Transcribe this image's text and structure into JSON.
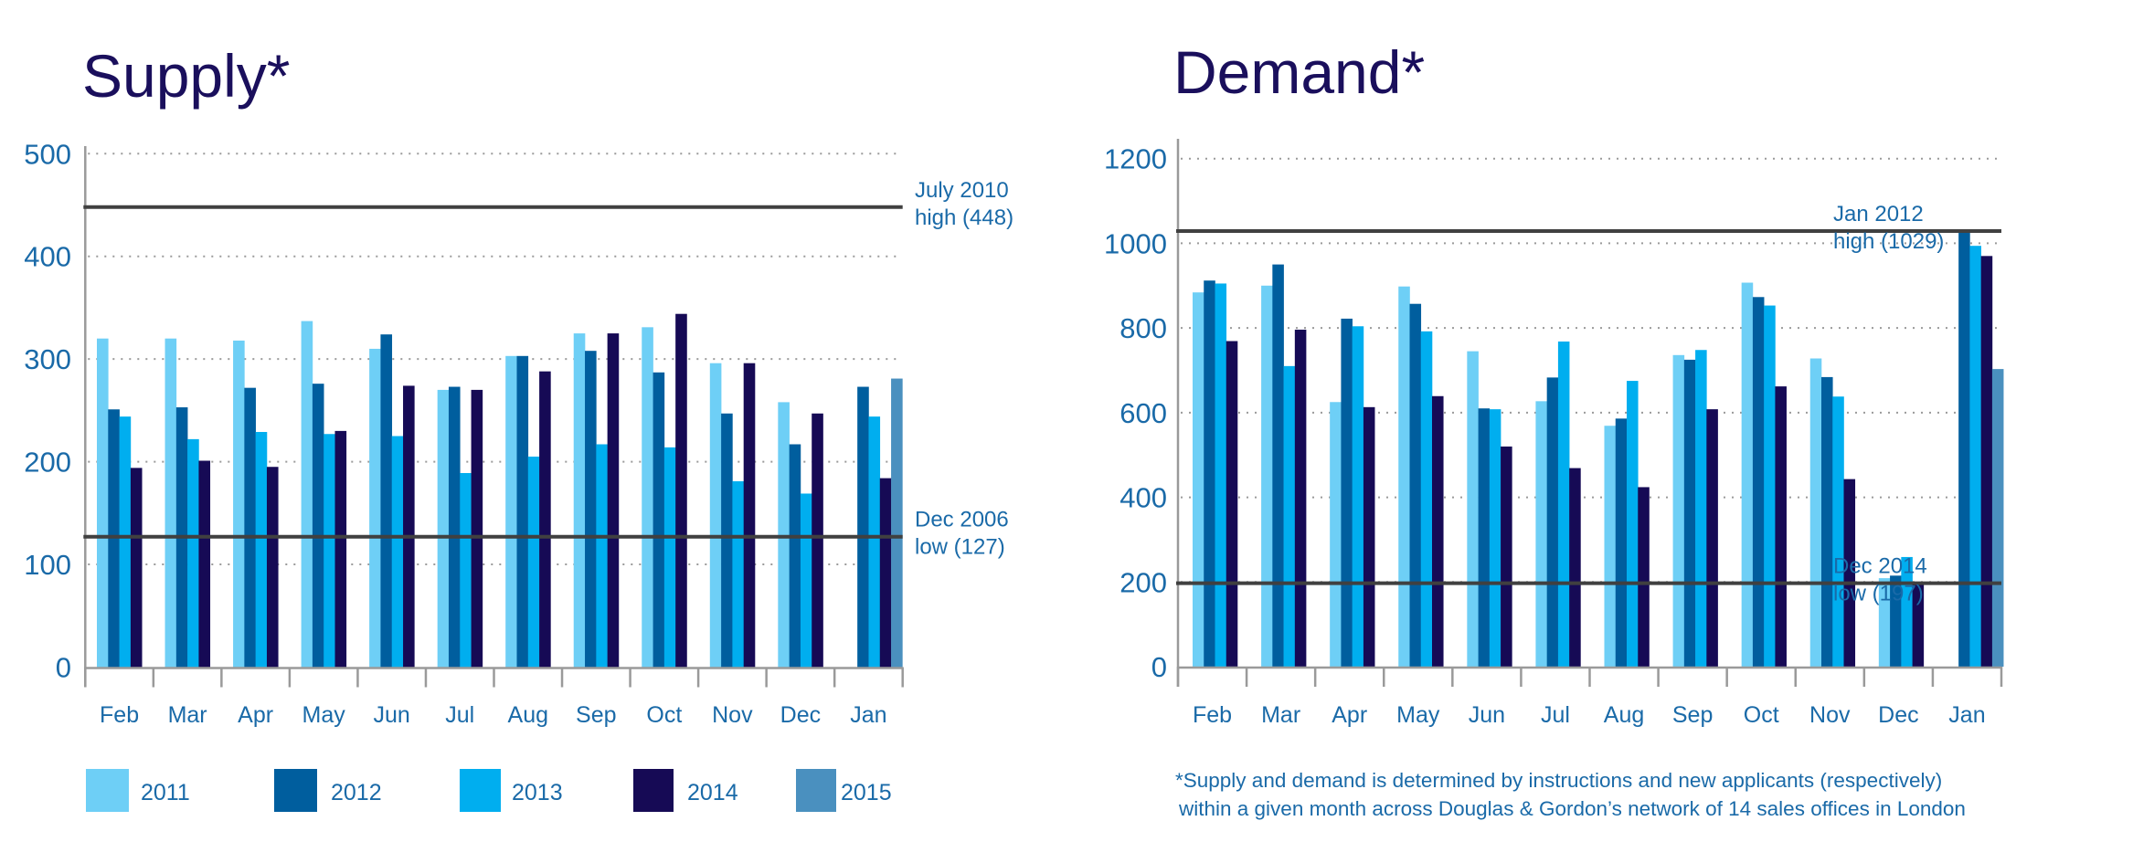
{
  "chart_data": [
    {
      "id": "supply",
      "type": "bar",
      "title": "Supply*",
      "xlabel": "",
      "ylabel": "",
      "ylim": [
        0,
        500
      ],
      "yticks": [
        0,
        100,
        200,
        300,
        400,
        500
      ],
      "grid": true,
      "categories": [
        "Feb",
        "Mar",
        "Apr",
        "May",
        "Jun",
        "Jul",
        "Aug",
        "Sep",
        "Oct",
        "Nov",
        "Dec",
        "Jan"
      ],
      "series": [
        {
          "name": "2011",
          "values": [
            320,
            320,
            318,
            337,
            310,
            270,
            303,
            325,
            331,
            296,
            258,
            null
          ]
        },
        {
          "name": "2012",
          "values": [
            251,
            253,
            272,
            276,
            324,
            273,
            303,
            308,
            287,
            247,
            217,
            273
          ]
        },
        {
          "name": "2013",
          "values": [
            244,
            222,
            229,
            227,
            225,
            189,
            205,
            217,
            214,
            181,
            169,
            244
          ]
        },
        {
          "name": "2014",
          "values": [
            194,
            201,
            195,
            230,
            274,
            270,
            288,
            325,
            344,
            296,
            247,
            184
          ]
        },
        {
          "name": "2015",
          "values": [
            null,
            null,
            null,
            null,
            null,
            null,
            null,
            null,
            null,
            null,
            null,
            281
          ]
        }
      ],
      "reference_lines": [
        {
          "value": 448,
          "label_line1": "July 2010",
          "label_line2": "high (448)"
        },
        {
          "value": 127,
          "label_line1": "Dec 2006",
          "label_line2": "low (127)"
        }
      ],
      "legend": "bottom"
    },
    {
      "id": "demand",
      "type": "bar",
      "title": "Demand*",
      "xlabel": "",
      "ylabel": "",
      "ylim": [
        0,
        1200
      ],
      "yticks": [
        0,
        200,
        400,
        600,
        800,
        1000,
        1200
      ],
      "grid": true,
      "categories": [
        "Feb",
        "Mar",
        "Apr",
        "May",
        "Jun",
        "Jul",
        "Aug",
        "Sep",
        "Oct",
        "Nov",
        "Dec",
        "Jan"
      ],
      "series": [
        {
          "name": "2011",
          "values": [
            884,
            900,
            625,
            898,
            745,
            627,
            569,
            736,
            907,
            728,
            209,
            null
          ]
        },
        {
          "name": "2012",
          "values": [
            912,
            950,
            822,
            857,
            610,
            683,
            586,
            725,
            873,
            684,
            215,
            1029
          ]
        },
        {
          "name": "2013",
          "values": [
            905,
            710,
            804,
            792,
            608,
            768,
            675,
            748,
            853,
            638,
            259,
            994
          ]
        },
        {
          "name": "2014",
          "values": [
            769,
            796,
            613,
            639,
            520,
            469,
            424,
            608,
            662,
            443,
            197,
            970
          ]
        },
        {
          "name": "2015",
          "values": [
            null,
            null,
            null,
            null,
            null,
            null,
            null,
            null,
            null,
            null,
            null,
            703
          ]
        }
      ],
      "reference_lines": [
        {
          "value": 1029,
          "label_line1": "Jan 2012",
          "label_line2": "high (1029)"
        },
        {
          "value": 197,
          "label_line1": "Dec 2014",
          "label_line2": "low (197)"
        }
      ]
    }
  ],
  "colors": {
    "2011": "#6ecff6",
    "2012": "#005e9e",
    "2013": "#00aeef",
    "2014": "#160a55",
    "2015": "#4a90bf",
    "title": "#1a0f5c",
    "text": "#1a6aa8",
    "axis": "#9a9a9a",
    "reference_line": "#404040",
    "grid": "#9a9a9a"
  },
  "legend": {
    "items": [
      {
        "label": "2011"
      },
      {
        "label": "2012"
      },
      {
        "label": "2013"
      },
      {
        "label": "2014"
      },
      {
        "label": "2015"
      }
    ]
  },
  "footnote": {
    "line1": "*Supply and demand is determined by instructions and new applicants (respectively)",
    "line2": "within a given month across Douglas & Gordon’s network of 14 sales offices in London"
  }
}
